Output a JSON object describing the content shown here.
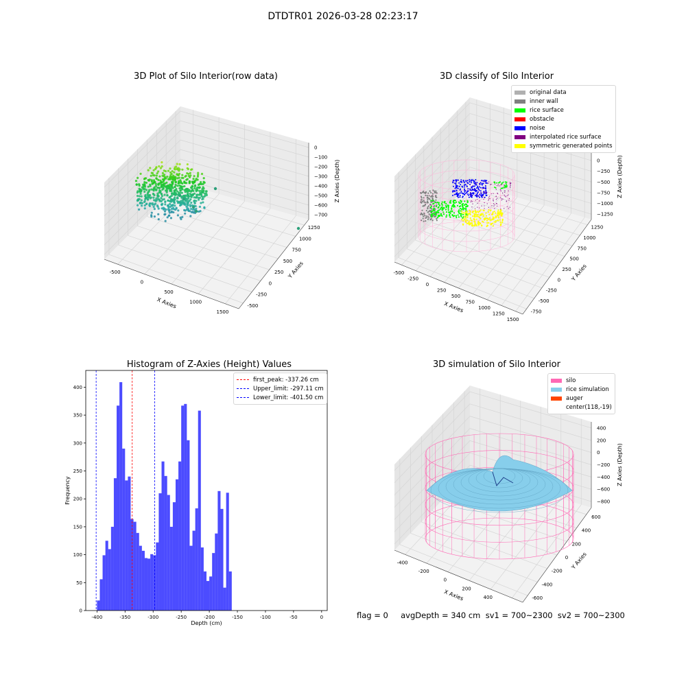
{
  "suptitle": "DTDTR01 2026-03-28 02:23:17",
  "footer_text": "flag = 0     avgDepth = 340 cm  sv1 = 700~2300  sv2 = 700~2300",
  "chart_data": [
    {
      "type": "scatter",
      "dims": 3,
      "title": "3D Plot of Silo Interior(row data)",
      "xlabel": "X Axies",
      "ylabel": "Y Axies",
      "zlabel": "Z Axies (Depth)",
      "xticks": [
        "-500",
        "0",
        "500",
        "1000",
        "1500"
      ],
      "yticks": [
        "-500",
        "-250",
        "0",
        "250",
        "500",
        "750",
        "1000",
        "1250"
      ],
      "zticks": [
        "0",
        "−100",
        "−200",
        "−300",
        "−400",
        "−500",
        "−600",
        "−700"
      ],
      "colormap": "viridis"
    },
    {
      "type": "scatter",
      "dims": 3,
      "title": "3D classify of Silo Interior",
      "xlabel": "X Axies",
      "ylabel": "Y Axies",
      "zlabel": "Z Axies (Depth)",
      "xticks": [
        "-500",
        "-250",
        "0",
        "250",
        "500",
        "750",
        "1000",
        "1250",
        "1500"
      ],
      "yticks": [
        "-750",
        "-500",
        "-250",
        "0",
        "250",
        "500",
        "750",
        "1000",
        "1250"
      ],
      "zticks": [
        "500",
        "250",
        "0",
        "−250",
        "−500",
        "−750",
        "−1000",
        "−1250"
      ],
      "legend": [
        {
          "label": "original data",
          "color": "#b0b0b0"
        },
        {
          "label": "inner wall",
          "color": "#808080"
        },
        {
          "label": "rice surface",
          "color": "#00ff00"
        },
        {
          "label": "obstacle",
          "color": "#ff0000"
        },
        {
          "label": "noise",
          "color": "#0000ff"
        },
        {
          "label": "interpolated rice surface",
          "color": "#800080"
        },
        {
          "label": "symmetric generated points",
          "color": "#ffff00"
        }
      ]
    },
    {
      "type": "bar",
      "title": "Histogram of Z-Axies (Height) Values",
      "xlabel": "Depth (cm)",
      "ylabel": "Frequency",
      "xlim": [
        -420,
        10
      ],
      "ylim": [
        0,
        430
      ],
      "xticks": [
        -400,
        -350,
        -300,
        -250,
        -200,
        -150,
        -100,
        -50,
        0
      ],
      "yticks": [
        0,
        50,
        100,
        150,
        200,
        250,
        300,
        350,
        400
      ],
      "bar_color": "#0000ff",
      "bins": [
        {
          "x": -405,
          "y": 0
        },
        {
          "x": -400,
          "y": 18
        },
        {
          "x": -395,
          "y": 56
        },
        {
          "x": -390,
          "y": 99
        },
        {
          "x": -385,
          "y": 125
        },
        {
          "x": -380,
          "y": 110
        },
        {
          "x": -375,
          "y": 150
        },
        {
          "x": -370,
          "y": 237
        },
        {
          "x": -365,
          "y": 367
        },
        {
          "x": -360,
          "y": 409
        },
        {
          "x": -355,
          "y": 290
        },
        {
          "x": -350,
          "y": 233
        },
        {
          "x": -345,
          "y": 240
        },
        {
          "x": -340,
          "y": 164
        },
        {
          "x": -335,
          "y": 159
        },
        {
          "x": -330,
          "y": 139
        },
        {
          "x": -325,
          "y": 116
        },
        {
          "x": -320,
          "y": 107
        },
        {
          "x": -315,
          "y": 94
        },
        {
          "x": -310,
          "y": 93
        },
        {
          "x": -305,
          "y": 101
        },
        {
          "x": -300,
          "y": 99
        },
        {
          "x": -295,
          "y": 122
        },
        {
          "x": -290,
          "y": 210
        },
        {
          "x": -285,
          "y": 267
        },
        {
          "x": -280,
          "y": 241
        },
        {
          "x": -275,
          "y": 207
        },
        {
          "x": -270,
          "y": 150
        },
        {
          "x": -265,
          "y": 194
        },
        {
          "x": -260,
          "y": 235
        },
        {
          "x": -255,
          "y": 267
        },
        {
          "x": -250,
          "y": 367
        },
        {
          "x": -245,
          "y": 370
        },
        {
          "x": -240,
          "y": 305
        },
        {
          "x": -235,
          "y": 116
        },
        {
          "x": -230,
          "y": 143
        },
        {
          "x": -225,
          "y": 183
        },
        {
          "x": -220,
          "y": 358
        },
        {
          "x": -215,
          "y": 113
        },
        {
          "x": -210,
          "y": 70
        },
        {
          "x": -205,
          "y": 53
        },
        {
          "x": -200,
          "y": 61
        },
        {
          "x": -195,
          "y": 103
        },
        {
          "x": -190,
          "y": 138
        },
        {
          "x": -185,
          "y": 214
        },
        {
          "x": -180,
          "y": 182
        },
        {
          "x": -175,
          "y": 41
        },
        {
          "x": -170,
          "y": 211
        },
        {
          "x": -165,
          "y": 70
        },
        {
          "x": -160,
          "y": 0
        },
        {
          "x": -155,
          "y": 0
        },
        {
          "x": -150,
          "y": 0
        },
        {
          "x": -145,
          "y": 0
        },
        {
          "x": -140,
          "y": 0
        },
        {
          "x": -135,
          "y": 0
        }
      ],
      "vlines": [
        {
          "label": "first_peak: -337.26 cm",
          "x": -337.26,
          "color": "#ff0000"
        },
        {
          "label": "Upper_limit: -297.11 cm",
          "x": -297.11,
          "color": "#0000ff"
        },
        {
          "label": "Lower_limit: -401.50 cm",
          "x": -401.5,
          "color": "#0000ff"
        }
      ]
    },
    {
      "type": "scatter",
      "dims": 3,
      "title": "3D simulation of Silo Interior",
      "xlabel": "X Axies",
      "ylabel": "Y Axies",
      "zlabel": "Z Axies (Depth)",
      "xticks": [
        "-400",
        "-200",
        "0",
        "200",
        "400",
        "600"
      ],
      "yticks": [
        "-600",
        "-400",
        "-200",
        "0",
        "200",
        "400",
        "600"
      ],
      "zticks": [
        "400",
        "200",
        "0",
        "−200",
        "−400",
        "−600",
        "−800"
      ],
      "legend": [
        {
          "label": "silo",
          "color": "#ff69b4"
        },
        {
          "label": "rice simulation",
          "color": "#87ceeb"
        },
        {
          "label": "auger",
          "color": "#ff4500"
        },
        {
          "label": "center(118,-19)",
          "color": ""
        }
      ]
    }
  ]
}
